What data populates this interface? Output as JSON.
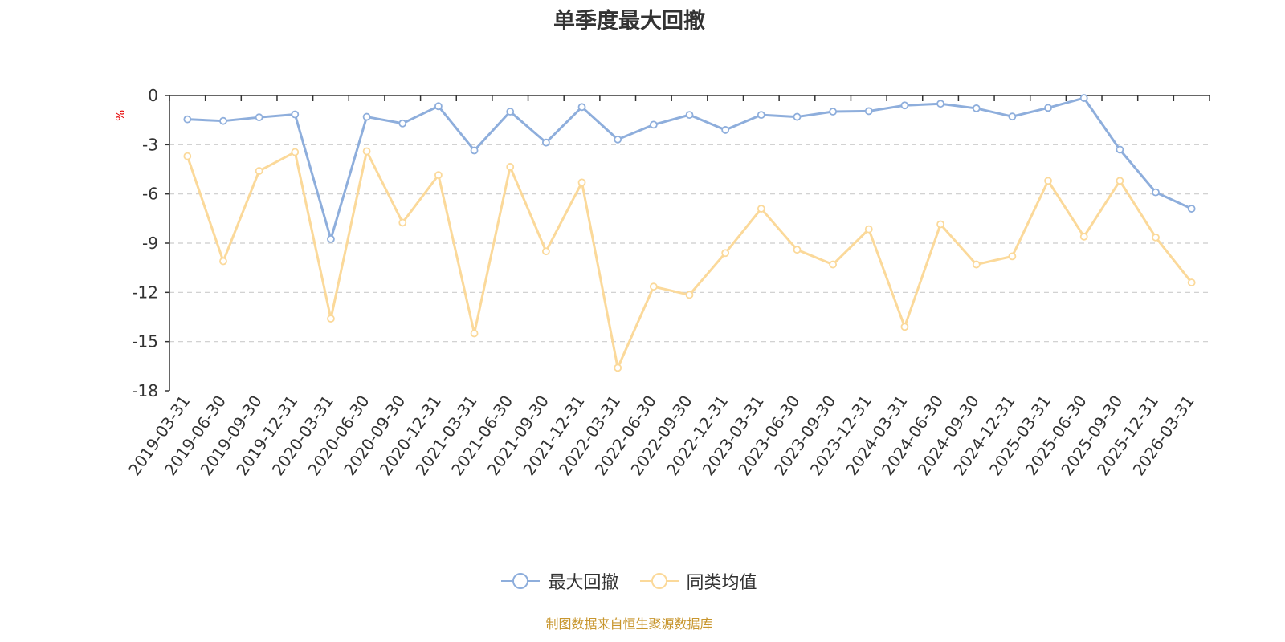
{
  "colors": {
    "series1": "#8eaedc",
    "series2": "#fbd99a",
    "unit": "#e60000",
    "source": "#c8962e",
    "grid": "#cccccc"
  },
  "chart_data": {
    "type": "line",
    "title": "单季度最大回撤",
    "ylabel": "%",
    "ylim": [
      -18,
      0
    ],
    "yticks": [
      0,
      -3,
      -6,
      -9,
      -12,
      -15,
      -18
    ],
    "categories": [
      "2019-03-31",
      "2019-06-30",
      "2019-09-30",
      "2019-12-31",
      "2020-03-31",
      "2020-06-30",
      "2020-09-30",
      "2020-12-31",
      "2021-03-31",
      "2021-06-30",
      "2021-09-30",
      "2021-12-31",
      "2022-03-31",
      "2022-06-30",
      "2022-09-30",
      "2022-12-31",
      "2023-03-31",
      "2023-06-30",
      "2023-09-30",
      "2023-12-31",
      "2024-03-31",
      "2024-06-30",
      "2024-09-30",
      "2024-12-31",
      "2025-03-31",
      "2025-06-30",
      "2025-09-30",
      "2025-12-31",
      "2026-03-31"
    ],
    "series": [
      {
        "name": "最大回撤",
        "values": [
          -1.45,
          -1.55,
          -1.33,
          -1.15,
          -8.75,
          -1.3,
          -1.7,
          -0.65,
          -3.35,
          -0.98,
          -2.87,
          -0.7,
          -2.68,
          -1.78,
          -1.18,
          -2.1,
          -1.18,
          -1.3,
          -0.98,
          -0.95,
          -0.6,
          -0.5,
          -0.78,
          -1.28,
          -0.75,
          -0.15,
          -3.3,
          -5.9,
          -6.9
        ]
      },
      {
        "name": "同类均值",
        "values": [
          -3.7,
          -10.1,
          -4.6,
          -3.45,
          -13.6,
          -3.4,
          -7.75,
          -4.85,
          -14.5,
          -4.35,
          -9.5,
          -5.3,
          -16.6,
          -11.65,
          -12.15,
          -9.6,
          -6.9,
          -9.4,
          -10.3,
          -8.15,
          -14.1,
          -7.85,
          -10.3,
          -9.8,
          -5.2,
          -8.6,
          -5.2,
          -8.65,
          -11.4
        ]
      }
    ],
    "legend_position": "bottom",
    "grid": true
  },
  "source": "制图数据来自恒生聚源数据库"
}
